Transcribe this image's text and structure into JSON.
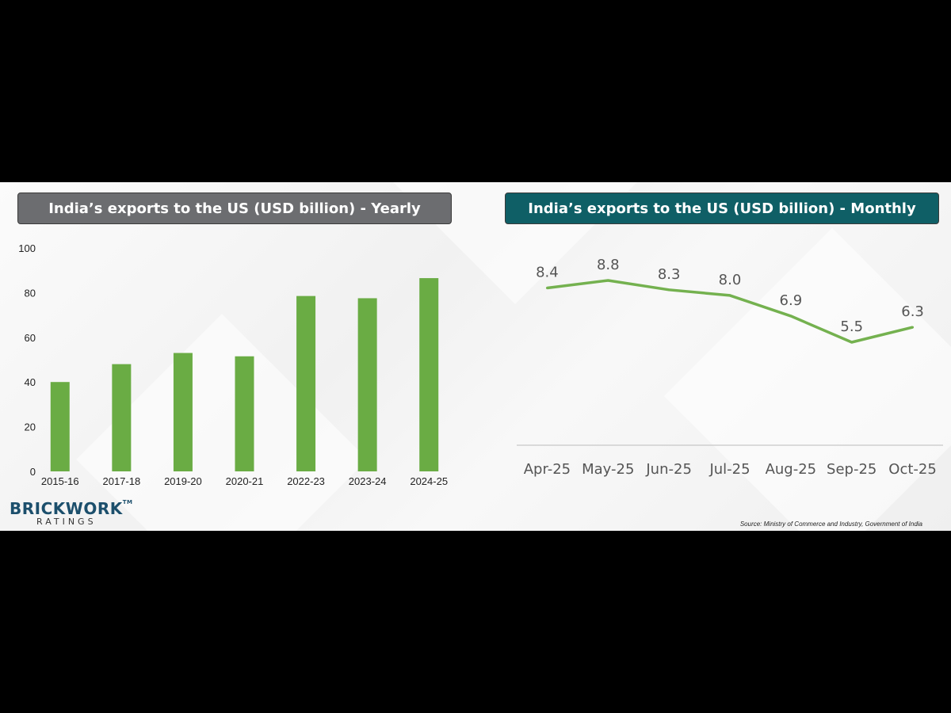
{
  "colors": {
    "bar": "#6aac44",
    "line": "#74b14f",
    "left_title_bg": "#6c6d70",
    "right_title_bg": "#0f5f66",
    "logo": "#1c4f6c"
  },
  "logo": {
    "main": "BRICKWORK",
    "sub": "RATINGS",
    "tm": "TM"
  },
  "source": "Source: Ministry of Commerce and Industry, Government of India",
  "chart_data": [
    {
      "type": "bar",
      "title": "India’s exports to the US (USD billion) - Yearly",
      "categories": [
        "2015-16",
        "2017-18",
        "2019-20",
        "2020-21",
        "2022-23",
        "2023-24",
        "2024-25"
      ],
      "values": [
        40,
        48,
        53,
        51.5,
        78.5,
        77.5,
        86.5
      ],
      "ylim": [
        0,
        100
      ],
      "yticks": [
        0,
        20,
        40,
        60,
        80,
        100
      ],
      "grid": false
    },
    {
      "type": "line",
      "title": "India’s exports to the US (USD billion) - Monthly",
      "categories": [
        "Apr-25",
        "May-25",
        "Jun-25",
        "Jul-25",
        "Aug-25",
        "Sep-25",
        "Oct-25"
      ],
      "values": [
        8.4,
        8.8,
        8.3,
        8.0,
        6.9,
        5.5,
        6.3
      ],
      "labels": [
        "8.4",
        "8.8",
        "8.3",
        "8.0",
        "6.9",
        "5.5",
        "6.3"
      ],
      "grid": false
    }
  ]
}
